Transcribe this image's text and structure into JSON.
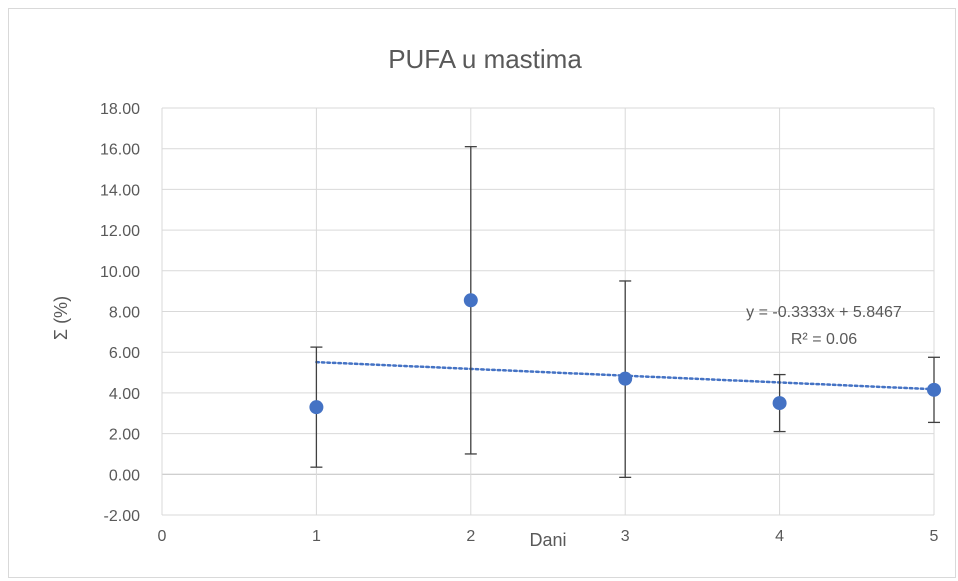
{
  "chart_data": {
    "type": "scatter",
    "title": "PUFA u mastima",
    "xlabel": "Dani",
    "ylabel": "Σ (%)",
    "xlim": [
      0,
      5
    ],
    "ylim": [
      -2,
      18
    ],
    "x_ticks": [
      "0",
      "1",
      "2",
      "3",
      "4",
      "5"
    ],
    "y_ticks": [
      "-2.00",
      "0.00",
      "2.00",
      "4.00",
      "6.00",
      "8.00",
      "10.00",
      "12.00",
      "14.00",
      "16.00",
      "18.00"
    ],
    "grid": "vertical and horizontal",
    "series": [
      {
        "x": [
          1,
          2,
          3,
          4,
          5
        ],
        "y": [
          3.3,
          8.55,
          4.7,
          3.5,
          4.15
        ],
        "error_low": [
          0.35,
          1.0,
          -0.15,
          2.1,
          2.55
        ],
        "error_high": [
          6.25,
          16.1,
          9.5,
          4.9,
          5.75
        ],
        "color": "#4472c4"
      }
    ],
    "trendline": {
      "type": "linear",
      "slope": -0.3333,
      "intercept": 5.8467,
      "x_range": [
        1,
        5
      ],
      "equation": "y = -0.3333x + 5.8467",
      "r_squared": "R² = 0.06",
      "color": "#4472c4",
      "style": "dotted"
    }
  }
}
